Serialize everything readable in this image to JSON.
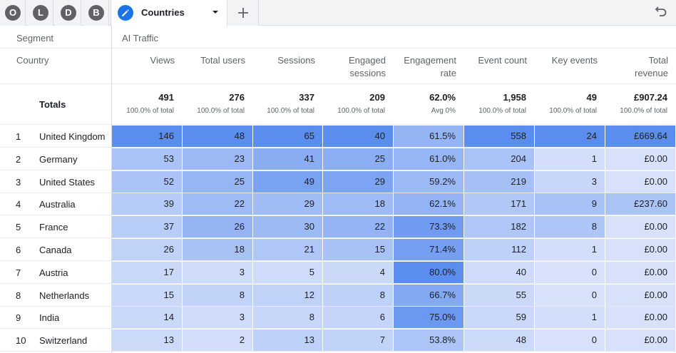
{
  "tabs": [
    {
      "letter": "O"
    },
    {
      "letter": "L"
    },
    {
      "letter": "D"
    },
    {
      "letter": "B"
    }
  ],
  "active_tab": {
    "label": "Countries",
    "icon": "pencil-icon"
  },
  "segment": {
    "label": "Segment",
    "value": "AI Traffic"
  },
  "dimension_label": "Country",
  "totals_label": "Totals",
  "columns": [
    {
      "line1": "Views",
      "line2": ""
    },
    {
      "line1": "Total users",
      "line2": ""
    },
    {
      "line1": "Sessions",
      "line2": ""
    },
    {
      "line1": "Engaged",
      "line2": "sessions"
    },
    {
      "line1": "Engagement",
      "line2": "rate"
    },
    {
      "line1": "Event count",
      "line2": ""
    },
    {
      "line1": "Key events",
      "line2": ""
    },
    {
      "line1": "Total",
      "line2": "revenue"
    }
  ],
  "totals": [
    {
      "value": "491",
      "sub": "100.0% of total"
    },
    {
      "value": "276",
      "sub": "100.0% of total"
    },
    {
      "value": "337",
      "sub": "100.0% of total"
    },
    {
      "value": "209",
      "sub": "100.0% of total"
    },
    {
      "value": "62.0%",
      "sub": "Avg 0%"
    },
    {
      "value": "1,958",
      "sub": "100.0% of total"
    },
    {
      "value": "49",
      "sub": "100.0% of total"
    },
    {
      "value": "£907.24",
      "sub": "100.0% of total"
    }
  ],
  "rows": [
    {
      "rank": "1",
      "country": "United Kingdom",
      "values": [
        "146",
        "48",
        "65",
        "40",
        "61.5%",
        "558",
        "24",
        "£669.64"
      ]
    },
    {
      "rank": "2",
      "country": "Germany",
      "values": [
        "53",
        "23",
        "41",
        "25",
        "61.0%",
        "204",
        "1",
        "£0.00"
      ]
    },
    {
      "rank": "3",
      "country": "United States",
      "values": [
        "52",
        "25",
        "49",
        "29",
        "59.2%",
        "219",
        "3",
        "£0.00"
      ]
    },
    {
      "rank": "4",
      "country": "Australia",
      "values": [
        "39",
        "22",
        "29",
        "18",
        "62.1%",
        "171",
        "9",
        "£237.60"
      ]
    },
    {
      "rank": "5",
      "country": "France",
      "values": [
        "37",
        "26",
        "30",
        "22",
        "73.3%",
        "182",
        "8",
        "£0.00"
      ]
    },
    {
      "rank": "6",
      "country": "Canada",
      "values": [
        "26",
        "18",
        "21",
        "15",
        "71.4%",
        "112",
        "1",
        "£0.00"
      ]
    },
    {
      "rank": "7",
      "country": "Austria",
      "values": [
        "17",
        "3",
        "5",
        "4",
        "80.0%",
        "40",
        "0",
        "£0.00"
      ]
    },
    {
      "rank": "8",
      "country": "Netherlands",
      "values": [
        "15",
        "8",
        "12",
        "8",
        "66.7%",
        "55",
        "0",
        "£0.00"
      ]
    },
    {
      "rank": "9",
      "country": "India",
      "values": [
        "14",
        "3",
        "8",
        "6",
        "75.0%",
        "59",
        "1",
        "£0.00"
      ]
    },
    {
      "rank": "10",
      "country": "Switzerland",
      "values": [
        "13",
        "2",
        "13",
        "7",
        "53.8%",
        "48",
        "0",
        "£0.00"
      ]
    }
  ],
  "heat_colors": {
    "low": "#e8edfc",
    "high": "#5b8def"
  }
}
